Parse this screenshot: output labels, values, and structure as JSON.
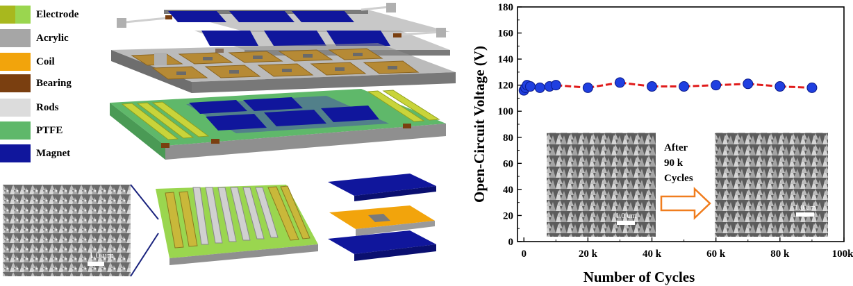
{
  "legend": {
    "items": [
      {
        "label": "Electrode",
        "color": "#a8b81e",
        "color2": "#9ad64f"
      },
      {
        "label": "Acrylic",
        "color": "#a6a6a6"
      },
      {
        "label": "Coil",
        "color": "#f2a40c"
      },
      {
        "label": "Bearing",
        "color": "#7a3f10"
      },
      {
        "label": "Rods",
        "color": "#dcdcdc"
      },
      {
        "label": "PTFE",
        "color": "#5fb86a"
      },
      {
        "label": "Magnet",
        "color": "#10169c"
      }
    ]
  },
  "sem_images": {
    "left_scale": "1.0 um",
    "before_scale": "1.0 um",
    "after_scale": "1.0 um"
  },
  "annotation": {
    "line1": "After",
    "line2": "90 k",
    "line3": "Cycles"
  },
  "chart_data": {
    "type": "line",
    "xlabel": "Number of Cycles",
    "ylabel": "Open-Circuit Voltage (V)",
    "xlim": [
      -2000,
      100000
    ],
    "ylim": [
      0,
      180
    ],
    "xticks": [
      0,
      20000,
      40000,
      60000,
      80000,
      100000
    ],
    "xtick_labels": [
      "0",
      "20 k",
      "40 k",
      "60 k",
      "80 k",
      "100k"
    ],
    "yticks": [
      0,
      20,
      40,
      60,
      80,
      100,
      120,
      140,
      160,
      180
    ],
    "ytick_labels": [
      "0",
      "20",
      "40",
      "60",
      "80",
      "100",
      "120",
      "140",
      "160",
      "180"
    ],
    "line_color": "#e01b1b",
    "marker_color": "#1f3fe0",
    "series": [
      {
        "x": [
          0,
          500,
          1000,
          2000,
          5000,
          8000,
          10000,
          20000,
          30000,
          40000,
          50000,
          60000,
          70000,
          80000,
          90000
        ],
        "values": [
          116,
          118,
          120,
          119,
          118,
          119,
          120,
          118,
          122,
          119,
          119,
          120,
          121,
          119,
          118
        ]
      }
    ]
  }
}
